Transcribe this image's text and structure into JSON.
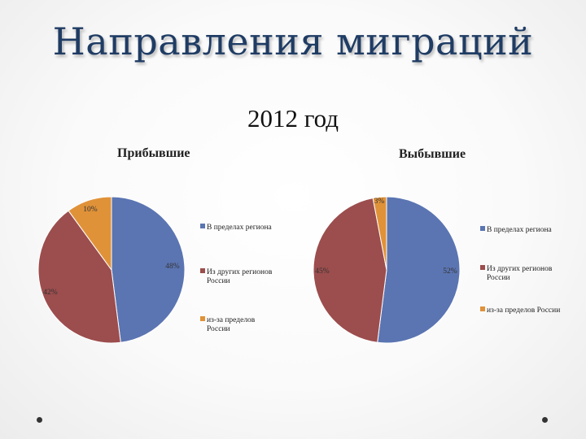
{
  "slide": {
    "title": "Направления миграций",
    "subtitle": "2012 год"
  },
  "chart_data": [
    {
      "type": "pie",
      "title": "Прибывшие",
      "categories": [
        "В пределах региона",
        "Из других регионов России",
        "из-за пределов России"
      ],
      "values": [
        48,
        42,
        10
      ],
      "labels": [
        "48%",
        "42%",
        "10%"
      ],
      "colors": [
        "#5b75b2",
        "#9c4d4d",
        "#e09239"
      ],
      "legend": "right"
    },
    {
      "type": "pie",
      "title": "Выбывшие",
      "categories": [
        "В пределах региона",
        "Из других регионов России",
        "из-за пределов России"
      ],
      "values": [
        52,
        45,
        3
      ],
      "labels": [
        "52%",
        "45%",
        "3%"
      ],
      "colors": [
        "#5b75b2",
        "#9c4d4d",
        "#e09239"
      ],
      "legend": "right"
    }
  ]
}
